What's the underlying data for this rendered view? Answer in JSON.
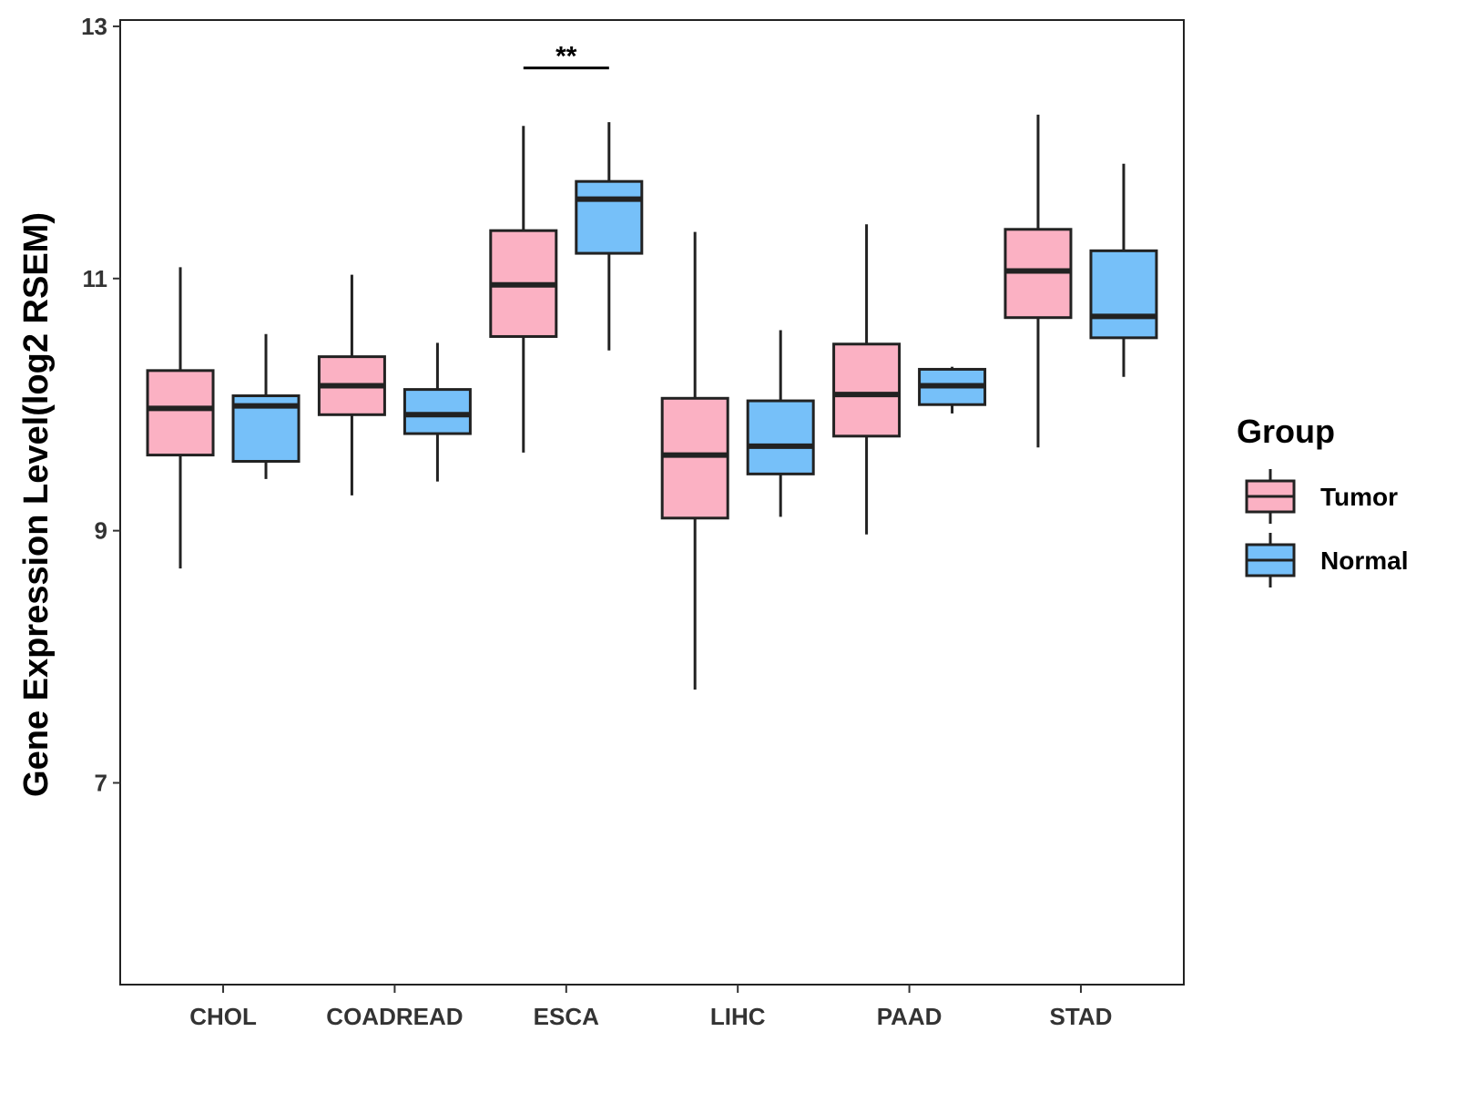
{
  "chart_data": {
    "type": "boxplot",
    "title": "",
    "xlabel": "",
    "ylabel": "Gene Expression Level(log2 RSEM)",
    "ylim": [
      5.4,
      13.05
    ],
    "yticks": [
      7,
      9,
      11,
      13
    ],
    "ytick_labels": [
      "7",
      "9",
      "11",
      "13"
    ],
    "grid": false,
    "categories": [
      "CHOL",
      "COADREAD",
      "ESCA",
      "LIHC",
      "PAAD",
      "STAD"
    ],
    "legend": {
      "title": "Group",
      "position": "right",
      "entries": [
        "Tumor",
        "Normal"
      ]
    },
    "series": [
      {
        "name": "Tumor",
        "color": "#fbb1c3",
        "boxes": [
          {
            "whisker_low": 8.7,
            "q1": 9.6,
            "median": 9.97,
            "q3": 10.27,
            "whisker_high": 11.09
          },
          {
            "whisker_low": 9.28,
            "q1": 9.92,
            "median": 10.15,
            "q3": 10.38,
            "whisker_high": 11.03
          },
          {
            "whisker_low": 9.62,
            "q1": 10.54,
            "median": 10.95,
            "q3": 11.38,
            "whisker_high": 12.21
          },
          {
            "whisker_low": 7.74,
            "q1": 9.1,
            "median": 9.6,
            "q3": 10.05,
            "whisker_high": 11.37
          },
          {
            "whisker_low": 8.97,
            "q1": 9.75,
            "median": 10.08,
            "q3": 10.48,
            "whisker_high": 11.43
          },
          {
            "whisker_low": 9.66,
            "q1": 10.69,
            "median": 11.06,
            "q3": 11.39,
            "whisker_high": 12.3
          }
        ]
      },
      {
        "name": "Normal",
        "color": "#76c0f9",
        "boxes": [
          {
            "whisker_low": 9.41,
            "q1": 9.55,
            "median": 9.99,
            "q3": 10.07,
            "whisker_high": 10.56
          },
          {
            "whisker_low": 9.39,
            "q1": 9.77,
            "median": 9.92,
            "q3": 10.12,
            "whisker_high": 10.49
          },
          {
            "whisker_low": 10.43,
            "q1": 11.2,
            "median": 11.63,
            "q3": 11.77,
            "whisker_high": 12.24
          },
          {
            "whisker_low": 9.11,
            "q1": 9.45,
            "median": 9.67,
            "q3": 10.03,
            "whisker_high": 10.59
          },
          {
            "whisker_low": 9.93,
            "q1": 10.0,
            "median": 10.15,
            "q3": 10.28,
            "whisker_high": 10.3
          },
          {
            "whisker_low": 10.22,
            "q1": 10.53,
            "median": 10.7,
            "q3": 11.22,
            "whisker_high": 11.91
          }
        ]
      }
    ],
    "annotations": [
      {
        "category": "ESCA",
        "text": "**",
        "y": 12.67
      }
    ]
  }
}
